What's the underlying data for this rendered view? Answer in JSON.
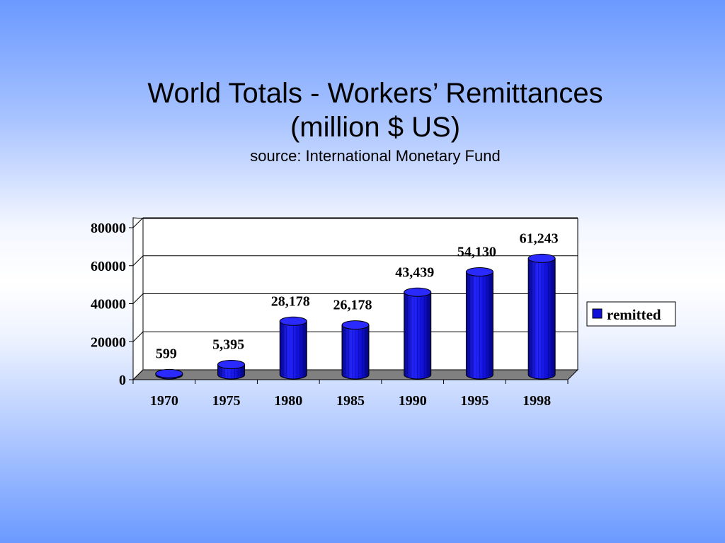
{
  "chart_data": {
    "type": "bar",
    "title_line1": "World Totals - Workers’ Remittances",
    "title_line2": "(million $ US)",
    "subtitle": "source: International Monetary Fund",
    "categories": [
      "1970",
      "1975",
      "1980",
      "1985",
      "1990",
      "1995",
      "1998"
    ],
    "series": [
      {
        "name": "remitted",
        "values": [
          599,
          5395,
          28178,
          26178,
          43439,
          54130,
          61243
        ],
        "labels": [
          "599",
          "5,395",
          "28,178",
          "26,178",
          "43,439",
          "54,130",
          "61,243"
        ],
        "color": "#1010d8"
      }
    ],
    "y_ticks": [
      "0",
      "20000",
      "40000",
      "60000",
      "80000"
    ],
    "ylim": [
      0,
      80000
    ],
    "grid": true,
    "legend_position": "right",
    "bar_shape": "3d-cylinder"
  }
}
